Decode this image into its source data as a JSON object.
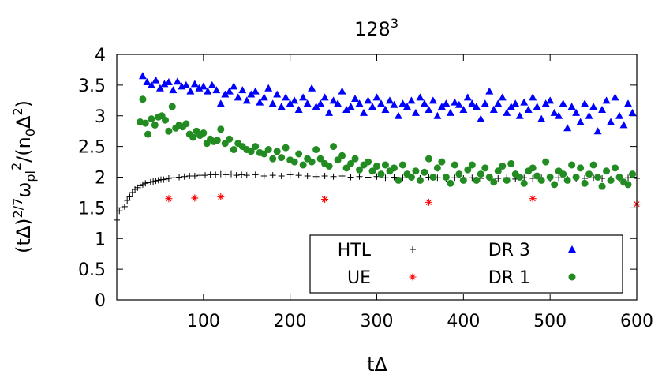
{
  "chart_data": {
    "type": "scatter",
    "title": "128",
    "title_sup": "3",
    "xlabel": "tΔ",
    "ylabel_parts": [
      "(tΔ)",
      "2/7",
      "ω",
      "pl",
      "2",
      "/(n",
      "0",
      "Δ",
      "2",
      ")"
    ],
    "xlim": [
      0,
      600
    ],
    "ylim": [
      0,
      4
    ],
    "xticks": [
      100,
      200,
      300,
      400,
      500,
      600
    ],
    "xtick_labels": [
      "100",
      "200",
      "300",
      "400",
      "500",
      "600"
    ],
    "yticks": [
      0,
      0.5,
      1,
      1.5,
      2,
      2.5,
      3,
      3.5,
      4
    ],
    "ytick_labels": [
      "0",
      "0.5",
      "1",
      "1.5",
      "2",
      "2.5",
      "3",
      "3.5",
      "4"
    ],
    "grid": false,
    "legend_position": "bottom-right",
    "series": [
      {
        "name": "HTL",
        "marker": "plus",
        "color": "#000000",
        "x": [
          0,
          3,
          6,
          9,
          12,
          15,
          18,
          21,
          24,
          27,
          30,
          33,
          36,
          39,
          42,
          45,
          48,
          51,
          54,
          57,
          60,
          66,
          72,
          78,
          84,
          90,
          96,
          102,
          108,
          114,
          120,
          126,
          132,
          138,
          144,
          150,
          160,
          170,
          180,
          190,
          200,
          210,
          220,
          230,
          240,
          250,
          260,
          270,
          280,
          290,
          300,
          310,
          320,
          330,
          340,
          350,
          360,
          370,
          380,
          390,
          400,
          410,
          420,
          430,
          440,
          450,
          460,
          470,
          480,
          490,
          500,
          510,
          520,
          530,
          540,
          550,
          560,
          570,
          580,
          590,
          600
        ],
        "y": [
          1.3,
          1.45,
          1.5,
          1.52,
          1.62,
          1.68,
          1.75,
          1.8,
          1.83,
          1.86,
          1.88,
          1.9,
          1.91,
          1.92,
          1.93,
          1.94,
          1.95,
          1.96,
          1.96,
          1.97,
          1.98,
          1.99,
          2.0,
          2.01,
          2.02,
          2.02,
          2.03,
          2.03,
          2.04,
          2.04,
          2.05,
          2.04,
          2.05,
          2.03,
          2.04,
          2.03,
          2.04,
          2.02,
          2.03,
          2.02,
          2.04,
          2.03,
          2.02,
          2.01,
          2.02,
          2.01,
          2.02,
          2.0,
          2.01,
          2.0,
          2.01,
          1.99,
          2.0,
          1.99,
          2.0,
          1.98,
          2.0,
          1.99,
          1.98,
          1.99,
          1.98,
          1.99,
          1.98,
          1.99,
          1.98,
          1.99,
          1.97,
          1.99,
          1.98,
          1.99,
          1.98,
          1.99,
          1.97,
          1.98,
          1.98,
          1.99,
          1.98,
          1.97,
          1.98,
          1.99,
          1.98
        ]
      },
      {
        "name": "UE",
        "marker": "asterisk",
        "color": "#ff0000",
        "x": [
          60,
          90,
          120,
          240,
          360,
          480,
          600
        ],
        "y": [
          1.65,
          1.66,
          1.68,
          1.64,
          1.59,
          1.65,
          1.56
        ]
      },
      {
        "name": "DR 3",
        "marker": "triangle",
        "color": "#0000ff",
        "x": [
          30,
          35,
          40,
          45,
          50,
          55,
          60,
          65,
          70,
          75,
          80,
          85,
          90,
          95,
          100,
          105,
          110,
          115,
          120,
          125,
          130,
          135,
          140,
          145,
          150,
          155,
          160,
          165,
          170,
          175,
          180,
          185,
          190,
          195,
          200,
          205,
          210,
          215,
          220,
          225,
          230,
          235,
          240,
          245,
          250,
          255,
          260,
          265,
          270,
          275,
          280,
          285,
          290,
          295,
          300,
          305,
          310,
          315,
          320,
          325,
          330,
          335,
          340,
          345,
          350,
          355,
          360,
          365,
          370,
          375,
          380,
          385,
          390,
          395,
          400,
          405,
          410,
          415,
          420,
          425,
          430,
          435,
          440,
          445,
          450,
          455,
          460,
          465,
          470,
          475,
          480,
          485,
          490,
          495,
          500,
          505,
          510,
          515,
          520,
          525,
          530,
          535,
          540,
          545,
          550,
          555,
          560,
          565,
          570,
          575,
          580,
          585,
          590,
          595
        ],
        "y": [
          3.65,
          3.55,
          3.5,
          3.58,
          3.45,
          3.52,
          3.55,
          3.42,
          3.56,
          3.48,
          3.5,
          3.4,
          3.52,
          3.45,
          3.48,
          3.4,
          3.5,
          3.42,
          3.2,
          3.35,
          3.4,
          3.48,
          3.3,
          3.42,
          3.25,
          3.35,
          3.4,
          3.22,
          3.3,
          3.45,
          3.2,
          3.35,
          3.15,
          3.3,
          3.2,
          3.25,
          3.1,
          3.3,
          3.2,
          3.45,
          3.15,
          3.2,
          3.3,
          3.05,
          3.25,
          3.2,
          3.4,
          3.1,
          3.15,
          3.28,
          3.2,
          3.05,
          3.25,
          3.15,
          3.3,
          3.2,
          3.1,
          3.25,
          3.18,
          3.0,
          3.2,
          3.15,
          3.25,
          3.05,
          3.3,
          3.2,
          3.1,
          3.25,
          3.0,
          3.15,
          3.2,
          3.05,
          3.22,
          3.18,
          3.1,
          3.3,
          3.2,
          3.15,
          2.95,
          3.2,
          3.4,
          3.1,
          3.2,
          3.3,
          3.05,
          3.15,
          3.2,
          3.0,
          3.22,
          3.1,
          3.3,
          3.15,
          2.95,
          3.2,
          3.25,
          3.05,
          3.0,
          3.2,
          2.8,
          3.15,
          3.05,
          2.9,
          3.2,
          3.0,
          3.15,
          2.75,
          3.1,
          3.25,
          2.9,
          3.3,
          3.0,
          2.85,
          3.2,
          3.05
        ]
      },
      {
        "name": "DR 1",
        "marker": "circle",
        "color": "#228b22",
        "x": [
          27,
          30,
          33,
          36,
          40,
          44,
          48,
          52,
          56,
          60,
          64,
          68,
          72,
          76,
          80,
          84,
          88,
          92,
          96,
          100,
          104,
          108,
          112,
          116,
          120,
          125,
          130,
          135,
          140,
          145,
          150,
          155,
          160,
          165,
          170,
          175,
          180,
          185,
          190,
          195,
          200,
          205,
          210,
          215,
          220,
          225,
          230,
          235,
          240,
          245,
          250,
          255,
          260,
          265,
          270,
          275,
          280,
          285,
          290,
          295,
          300,
          305,
          310,
          315,
          320,
          325,
          330,
          335,
          340,
          345,
          350,
          355,
          360,
          365,
          370,
          375,
          380,
          385,
          390,
          395,
          400,
          405,
          410,
          415,
          420,
          425,
          430,
          435,
          440,
          445,
          450,
          455,
          460,
          465,
          470,
          475,
          480,
          485,
          490,
          495,
          500,
          505,
          510,
          515,
          520,
          525,
          530,
          535,
          540,
          545,
          550,
          555,
          560,
          565,
          570,
          575,
          580,
          585,
          590,
          595
        ],
        "y": [
          2.9,
          3.27,
          2.88,
          2.7,
          2.95,
          2.85,
          2.98,
          3.0,
          2.93,
          2.75,
          3.15,
          2.8,
          2.85,
          2.82,
          2.87,
          2.7,
          2.65,
          2.75,
          2.68,
          2.72,
          2.55,
          2.62,
          2.58,
          2.6,
          2.78,
          2.55,
          2.62,
          2.45,
          2.55,
          2.5,
          2.45,
          2.42,
          2.5,
          2.4,
          2.38,
          2.45,
          2.3,
          2.42,
          2.32,
          2.48,
          2.28,
          2.25,
          2.38,
          2.2,
          2.3,
          2.25,
          2.45,
          2.3,
          2.22,
          2.18,
          2.5,
          2.28,
          2.35,
          2.15,
          2.22,
          2.3,
          2.12,
          2.2,
          2.25,
          2.1,
          2.18,
          2.05,
          2.2,
          2.1,
          2.15,
          1.95,
          2.2,
          2.05,
          2.0,
          2.1,
          1.95,
          2.08,
          2.3,
          2.0,
          2.15,
          2.25,
          2.0,
          1.9,
          2.2,
          2.05,
          1.95,
          2.12,
          2.2,
          1.95,
          2.05,
          2.15,
          2.0,
          1.92,
          2.1,
          2.18,
          1.95,
          2.22,
          2.05,
          2.0,
          1.9,
          2.1,
          2.15,
          2.02,
          1.95,
          2.25,
          2.0,
          1.88,
          2.1,
          2.05,
          1.95,
          2.2,
          2.0,
          2.15,
          1.9,
          2.05,
          2.2,
          2.0,
          1.85,
          2.1,
          1.95,
          2.15,
          2.0,
          1.92,
          1.88,
          2.05
        ]
      }
    ]
  }
}
